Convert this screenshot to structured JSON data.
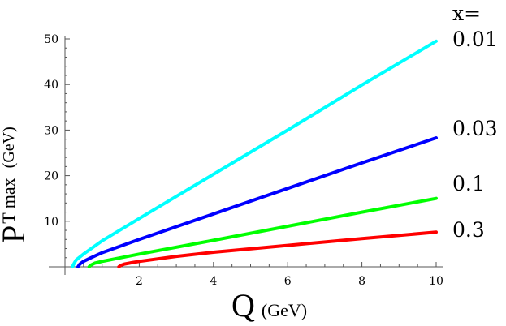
{
  "chart_data": {
    "type": "line",
    "xlabel": {
      "main": "Q",
      "unit": "(GeV)"
    },
    "ylabel": {
      "main": "P",
      "sub": "T max",
      "unit": "(GeV)"
    },
    "xlim": [
      0,
      10
    ],
    "ylim": [
      0,
      50
    ],
    "x_ticks": [
      2,
      4,
      6,
      8,
      10
    ],
    "y_ticks": [
      10,
      20,
      30,
      40,
      50
    ],
    "legend_header": "x=",
    "series": [
      {
        "name": "0.01",
        "color": "#00ffff",
        "q_start": 0.2,
        "points": [
          [
            0.2,
            0
          ],
          [
            0.25,
            0.8
          ],
          [
            0.3,
            1.5
          ],
          [
            0.5,
            2.8
          ],
          [
            1,
            5.7
          ],
          [
            2,
            10.6
          ],
          [
            4,
            20.3
          ],
          [
            6,
            30
          ],
          [
            8,
            39.9
          ],
          [
            10,
            49.5
          ]
        ]
      },
      {
        "name": "0.03",
        "color": "#0000ff",
        "q_start": 0.35,
        "points": [
          [
            0.35,
            0
          ],
          [
            0.4,
            0.6
          ],
          [
            0.5,
            1.2
          ],
          [
            0.7,
            2.0
          ],
          [
            1,
            3.1
          ],
          [
            2,
            6.0
          ],
          [
            4,
            11.6
          ],
          [
            6,
            17.2
          ],
          [
            8,
            22.8
          ],
          [
            10,
            28.3
          ]
        ]
      },
      {
        "name": "0.1",
        "color": "#00ff00",
        "q_start": 0.65,
        "points": [
          [
            0.65,
            0
          ],
          [
            0.7,
            0.4
          ],
          [
            0.8,
            0.8
          ],
          [
            1,
            1.2
          ],
          [
            1.5,
            2.0
          ],
          [
            2,
            2.8
          ],
          [
            4,
            5.8
          ],
          [
            6,
            8.9
          ],
          [
            8,
            12.0
          ],
          [
            10,
            15.0
          ]
        ]
      },
      {
        "name": "0.3",
        "color": "#ff0000",
        "q_start": 1.45,
        "points": [
          [
            1.45,
            0
          ],
          [
            1.5,
            0.3
          ],
          [
            1.6,
            0.6
          ],
          [
            1.8,
            0.9
          ],
          [
            2,
            1.2
          ],
          [
            3,
            2.3
          ],
          [
            4,
            3.2
          ],
          [
            6,
            4.7
          ],
          [
            8,
            6.2
          ],
          [
            10,
            7.6
          ]
        ]
      }
    ]
  }
}
